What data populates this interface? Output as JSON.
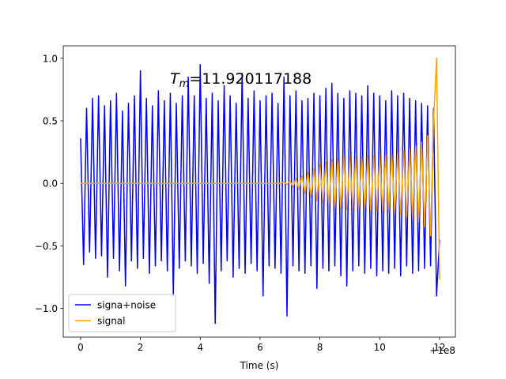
{
  "chart_data": {
    "type": "line",
    "annotation": {
      "symbol": "T",
      "subscript": "m",
      "text": "=11.920117188"
    },
    "x_label": "Time (s)",
    "x_offset_label": "+1e8",
    "x": [
      0,
      0.1,
      0.2,
      0.3,
      0.4,
      0.5,
      0.6,
      0.7,
      0.8,
      0.9,
      1.0,
      1.1,
      1.2,
      1.3,
      1.4,
      1.5,
      1.6,
      1.7,
      1.8,
      1.9,
      2.0,
      2.1,
      2.2,
      2.3,
      2.4,
      2.5,
      2.6,
      2.7,
      2.8,
      2.9,
      3.0,
      3.1,
      3.2,
      3.3,
      3.4,
      3.5,
      3.6,
      3.7,
      3.8,
      3.9,
      4.0,
      4.1,
      4.2,
      4.3,
      4.4,
      4.5,
      4.6,
      4.7,
      4.8,
      4.9,
      5.0,
      5.1,
      5.2,
      5.3,
      5.4,
      5.5,
      5.6,
      5.7,
      5.8,
      5.9,
      6.0,
      6.1,
      6.2,
      6.3,
      6.4,
      6.5,
      6.6,
      6.7,
      6.8,
      6.9,
      7.0,
      7.1,
      7.2,
      7.3,
      7.4,
      7.5,
      7.6,
      7.7,
      7.8,
      7.9,
      8.0,
      8.1,
      8.2,
      8.3,
      8.4,
      8.5,
      8.6,
      8.7,
      8.8,
      8.9,
      9.0,
      9.1,
      9.2,
      9.3,
      9.4,
      9.5,
      9.6,
      9.7,
      9.8,
      9.9,
      10.0,
      10.1,
      10.2,
      10.3,
      10.4,
      10.5,
      10.6,
      10.7,
      10.8,
      10.9,
      11.0,
      11.1,
      11.2,
      11.3,
      11.4,
      11.5,
      11.6,
      11.7,
      11.8,
      11.9,
      12.0
    ],
    "series": [
      {
        "name": "signa+noise",
        "color": "#0000ff",
        "values": [
          0.36,
          -0.65,
          0.6,
          -0.55,
          0.68,
          -0.6,
          0.7,
          -0.58,
          0.62,
          -0.75,
          0.66,
          -0.6,
          0.72,
          -0.7,
          0.58,
          -0.82,
          0.64,
          -0.62,
          0.7,
          -0.68,
          0.9,
          -0.6,
          0.68,
          -0.72,
          0.62,
          -0.66,
          0.74,
          -0.62,
          0.66,
          -0.7,
          0.72,
          -0.9,
          0.64,
          -0.68,
          0.7,
          -0.62,
          0.85,
          -0.66,
          0.7,
          -0.72,
          0.95,
          -0.64,
          0.68,
          -0.8,
          0.72,
          -1.12,
          0.66,
          -0.7,
          0.78,
          -0.62,
          0.7,
          -0.75,
          0.64,
          -0.68,
          0.88,
          -0.72,
          0.68,
          -0.64,
          0.74,
          -0.7,
          0.66,
          -0.9,
          0.7,
          -0.66,
          0.72,
          -0.68,
          0.64,
          -0.72,
          0.85,
          -1.06,
          0.7,
          -0.66,
          0.74,
          -0.7,
          0.66,
          -0.72,
          0.68,
          -0.66,
          0.72,
          -0.84,
          0.7,
          -0.68,
          0.76,
          -0.7,
          0.8,
          -0.66,
          0.72,
          -0.74,
          0.68,
          -0.82,
          0.74,
          -0.7,
          0.72,
          -0.66,
          0.7,
          -0.72,
          0.78,
          -0.68,
          0.72,
          -0.74,
          0.7,
          -0.7,
          0.66,
          -0.72,
          0.74,
          -0.68,
          0.7,
          -0.74,
          0.72,
          -0.66,
          0.68,
          -0.72,
          0.66,
          -0.7,
          0.64,
          -0.68,
          0.62,
          -0.66,
          0.6,
          -0.9,
          -0.45
        ]
      },
      {
        "name": "signal",
        "color": "#ffa500",
        "values": [
          0,
          0,
          0,
          0,
          0,
          0,
          0,
          0,
          0,
          0,
          0,
          0,
          0,
          0,
          0,
          0,
          0,
          0,
          0,
          0,
          0,
          0,
          0,
          0,
          0,
          0,
          0,
          0,
          0,
          0,
          0,
          0,
          0,
          0,
          0,
          0,
          0,
          0,
          0,
          0,
          0,
          0,
          0,
          0,
          0,
          0,
          0,
          0,
          0,
          0,
          0,
          0,
          0,
          0,
          0,
          0,
          0,
          0,
          0,
          0,
          0,
          0,
          0,
          0,
          0,
          0,
          0,
          0,
          0.01,
          -0.01,
          0.02,
          -0.03,
          0.04,
          -0.05,
          0.06,
          -0.08,
          0.09,
          -0.11,
          0.12,
          -0.14,
          0.15,
          -0.16,
          0.17,
          -0.18,
          0.19,
          -0.2,
          0.2,
          -0.21,
          0.21,
          -0.21,
          0.21,
          -0.21,
          0.21,
          -0.21,
          0.21,
          -0.21,
          0.22,
          -0.22,
          0.22,
          -0.22,
          0.22,
          -0.23,
          0.23,
          -0.23,
          0.24,
          -0.24,
          0.25,
          -0.25,
          0.26,
          -0.27,
          0.28,
          -0.29,
          0.3,
          -0.31,
          0.33,
          -0.35,
          0.38,
          -0.42,
          0.5,
          1.0,
          -0.77
        ]
      }
    ],
    "xlim": [
      -0.58,
      12.53
    ],
    "ylim": [
      -1.23,
      1.1
    ],
    "xticks": [
      0,
      2,
      4,
      6,
      8,
      10,
      12
    ],
    "yticks": [
      {
        "value": -1.0,
        "label": "−1.0"
      },
      {
        "value": -0.5,
        "label": "−0.5"
      },
      {
        "value": 0.0,
        "label": "0.0"
      },
      {
        "value": 0.5,
        "label": "0.5"
      },
      {
        "value": 1.0,
        "label": "1.0"
      }
    ],
    "legend": "lower left"
  }
}
